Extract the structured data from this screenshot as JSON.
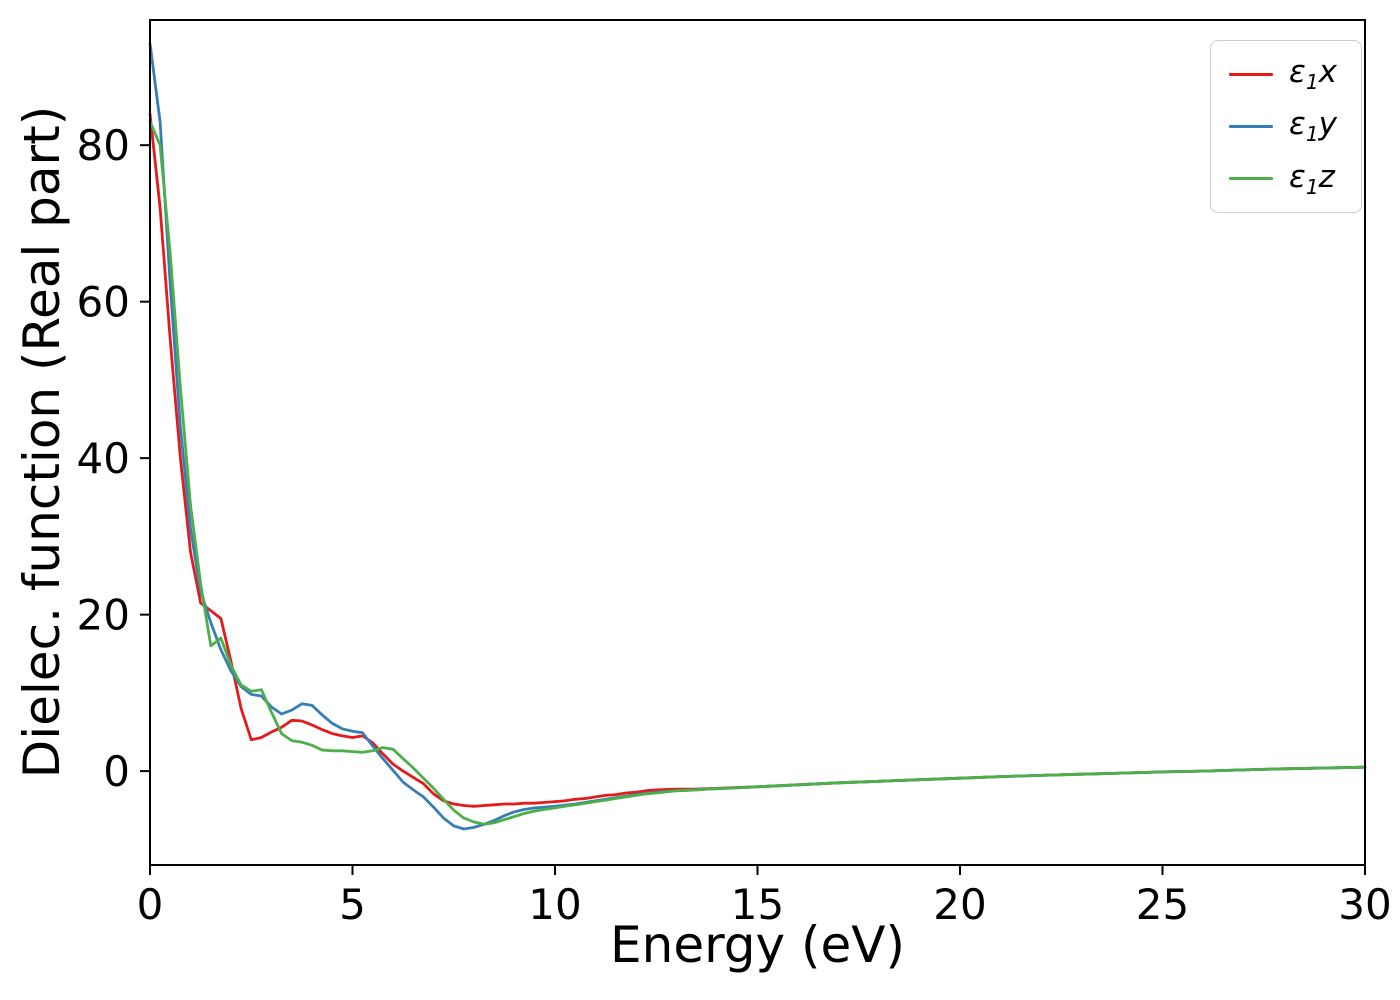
{
  "chart_data": {
    "type": "line",
    "title": "",
    "xlabel": "Energy (eV)",
    "ylabel": "Dielec. function (Real part)",
    "xlim": [
      0,
      30
    ],
    "ylim": [
      -12,
      96
    ],
    "xticks": [
      0,
      5,
      10,
      15,
      20,
      25,
      30
    ],
    "yticks": [
      0,
      20,
      40,
      60,
      80
    ],
    "grid": false,
    "legend_position": "upper right",
    "x": [
      0,
      0.25,
      0.5,
      0.75,
      1,
      1.25,
      1.5,
      1.75,
      2,
      2.25,
      2.5,
      2.75,
      3,
      3.25,
      3.5,
      3.75,
      4,
      4.25,
      4.5,
      4.75,
      5,
      5.25,
      5.5,
      5.75,
      6,
      6.25,
      6.5,
      6.75,
      7,
      7.25,
      7.5,
      7.75,
      8,
      8.25,
      8.5,
      8.75,
      9,
      9.25,
      9.5,
      9.75,
      10,
      10.25,
      10.5,
      10.75,
      11,
      11.25,
      11.5,
      11.75,
      12,
      12.25,
      12.5,
      12.75,
      13,
      13.25,
      13.5,
      13.75,
      14,
      15,
      16,
      17,
      18,
      19,
      20,
      21,
      22,
      23,
      24,
      25,
      26,
      27,
      28,
      29,
      30
    ],
    "series": [
      {
        "id": "e1x",
        "name": "ε₁x",
        "sym": "ε",
        "sub": "1",
        "axis": "x",
        "color": "#e41a1c",
        "values": [
          84,
          72,
          55,
          40,
          28,
          21.5,
          20.5,
          19.5,
          14,
          8,
          4,
          4.3,
          5,
          5.6,
          6.5,
          6.4,
          5.9,
          5.3,
          4.8,
          4.5,
          4.3,
          4.5,
          3.6,
          2.2,
          0.9,
          0,
          -0.8,
          -1.6,
          -2.9,
          -3.8,
          -4.2,
          -4.4,
          -4.5,
          -4.4,
          -4.3,
          -4.2,
          -4.2,
          -4.1,
          -4.1,
          -4.0,
          -3.9,
          -3.8,
          -3.6,
          -3.5,
          -3.3,
          -3.1,
          -3.0,
          -2.8,
          -2.7,
          -2.5,
          -2.4,
          -2.35,
          -2.3,
          -2.3,
          -2.3,
          -2.25,
          -2.2,
          -2.0,
          -1.75,
          -1.5,
          -1.3,
          -1.1,
          -0.9,
          -0.7,
          -0.55,
          -0.4,
          -0.25,
          -0.1,
          0.0,
          0.15,
          0.3,
          0.4,
          0.5
        ]
      },
      {
        "id": "e1y",
        "name": "ε₁y",
        "sym": "ε",
        "sub": "1",
        "axis": "y",
        "color": "#377eb8",
        "values": [
          93,
          83,
          62,
          44,
          31,
          23,
          19,
          15.5,
          12.8,
          10.8,
          9.8,
          9.6,
          8.2,
          7.3,
          7.8,
          8.6,
          8.4,
          7.2,
          6.1,
          5.4,
          5.1,
          4.9,
          3.2,
          1.6,
          0.1,
          -1.4,
          -2.4,
          -3.3,
          -4.6,
          -6.0,
          -7.0,
          -7.4,
          -7.2,
          -6.8,
          -6.3,
          -5.7,
          -5.2,
          -4.9,
          -4.7,
          -4.6,
          -4.5,
          -4.35,
          -4.2,
          -4.0,
          -3.8,
          -3.6,
          -3.4,
          -3.2,
          -3.0,
          -2.85,
          -2.7,
          -2.6,
          -2.5,
          -2.45,
          -2.4,
          -2.3,
          -2.25,
          -2.0,
          -1.75,
          -1.5,
          -1.3,
          -1.1,
          -0.9,
          -0.7,
          -0.55,
          -0.4,
          -0.25,
          -0.1,
          0.0,
          0.15,
          0.3,
          0.4,
          0.5
        ]
      },
      {
        "id": "e1z",
        "name": "ε₁z",
        "sym": "ε",
        "sub": "1",
        "axis": "z",
        "color": "#4daf4a",
        "values": [
          83,
          80,
          66,
          49,
          34,
          24,
          16,
          17,
          13.5,
          11,
          10.2,
          10.4,
          7.5,
          4.8,
          3.9,
          3.7,
          3.3,
          2.7,
          2.6,
          2.6,
          2.5,
          2.4,
          2.6,
          3.0,
          2.8,
          1.6,
          0.4,
          -0.9,
          -2.2,
          -3.6,
          -5.0,
          -6.0,
          -6.5,
          -6.8,
          -6.6,
          -6.2,
          -5.8,
          -5.4,
          -5.1,
          -4.9,
          -4.7,
          -4.5,
          -4.3,
          -4.1,
          -3.9,
          -3.7,
          -3.5,
          -3.3,
          -3.1,
          -2.9,
          -2.8,
          -2.65,
          -2.5,
          -2.45,
          -2.4,
          -2.3,
          -2.25,
          -2.0,
          -1.75,
          -1.5,
          -1.3,
          -1.1,
          -0.9,
          -0.7,
          -0.55,
          -0.4,
          -0.25,
          -0.1,
          0.0,
          0.15,
          0.3,
          0.4,
          0.5
        ]
      }
    ],
    "style": {
      "spine_color": "#000000",
      "tick_label_color": "#000000",
      "axis_label_color": "#000000",
      "line_width": 2.8
    }
  }
}
